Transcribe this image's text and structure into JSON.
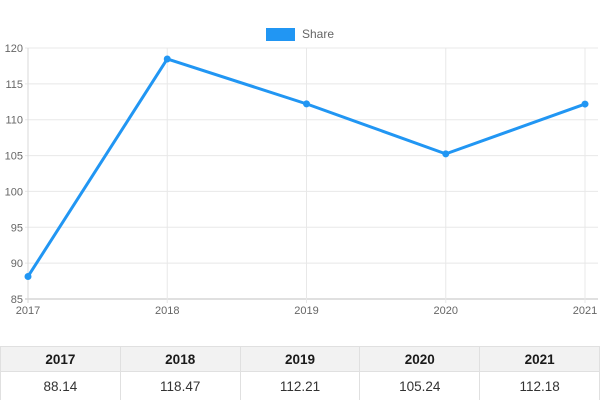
{
  "colors": {
    "accent": "#2196F3",
    "grid": "#e8e8e8",
    "x_axis": "#c0c0c0",
    "y_axis": "#d9d9d9",
    "tick_label": "#666666"
  },
  "legend": {
    "label": "Share"
  },
  "chart_data": {
    "type": "line",
    "title": "",
    "xlabel": "",
    "ylabel": "",
    "categories": [
      "2017",
      "2018",
      "2019",
      "2020",
      "2021"
    ],
    "series": [
      {
        "name": "Share",
        "values": [
          88.14,
          118.47,
          112.21,
          105.24,
          112.18
        ]
      }
    ],
    "ylim": [
      85,
      120
    ],
    "ytick_step": 5,
    "grid": true,
    "legend_position": "top-center",
    "marker": "circle"
  },
  "table": {
    "headers": [
      "2017",
      "2018",
      "2019",
      "2020",
      "2021"
    ],
    "rows": [
      [
        "88.14",
        "118.47",
        "112.21",
        "105.24",
        "112.18"
      ]
    ]
  }
}
